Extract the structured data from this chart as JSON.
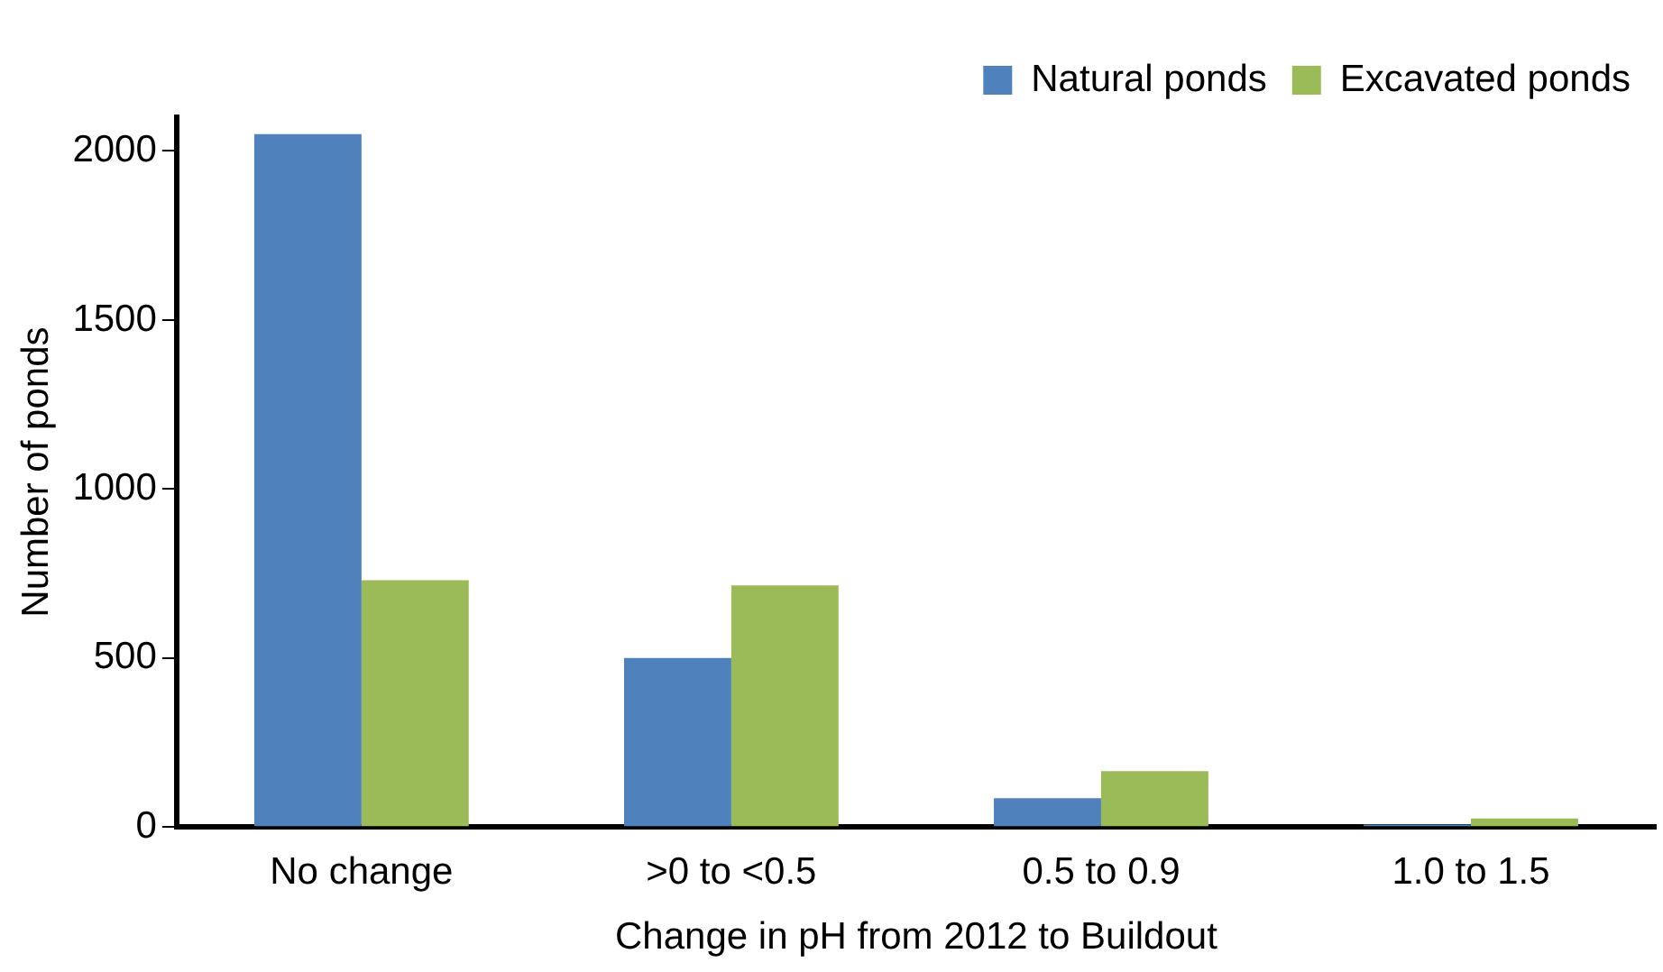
{
  "chart_data": {
    "type": "bar",
    "xlabel": "Change in pH from 2012 to Buildout",
    "ylabel": "Number of ponds",
    "categories": [
      "No change",
      ">0 to <0.5",
      "0.5 to 0.9",
      "1.0 to 1.5"
    ],
    "series": [
      {
        "name": "Natural ponds",
        "color": "#4f81bd",
        "values": [
          2050,
          500,
          85,
          7
        ]
      },
      {
        "name": "Excavated ponds",
        "color": "#9bbb59",
        "values": [
          730,
          715,
          165,
          25
        ]
      }
    ],
    "ylim": [
      0,
      2100
    ],
    "yticks": [
      0,
      500,
      1000,
      1500,
      2000
    ],
    "grid": false,
    "legend": "top right"
  }
}
